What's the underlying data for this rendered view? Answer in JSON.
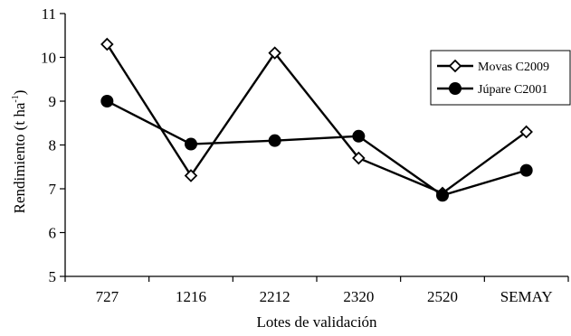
{
  "chart_data": {
    "type": "line",
    "title": "",
    "xlabel": "Lotes de validación",
    "ylabel_main": "Rendimiento (t ha",
    "ylabel_sup": "-1",
    "ylabel_close": ")",
    "categories": [
      "727",
      "1216",
      "2212",
      "2320",
      "2520",
      "SEMAY"
    ],
    "ylim": [
      5,
      11
    ],
    "yticks": [
      5,
      6,
      7,
      8,
      9,
      10,
      11
    ],
    "grid": false,
    "legend_position": "top-right",
    "series": [
      {
        "name": "Movas C2009",
        "marker": "diamond-open",
        "color": "#000000",
        "values": [
          10.3,
          7.3,
          10.1,
          7.7,
          6.9,
          8.3
        ]
      },
      {
        "name": "Júpare C2001",
        "marker": "circle-filled",
        "color": "#000000",
        "values": [
          9.0,
          8.02,
          8.1,
          8.2,
          6.85,
          7.42
        ]
      }
    ]
  }
}
